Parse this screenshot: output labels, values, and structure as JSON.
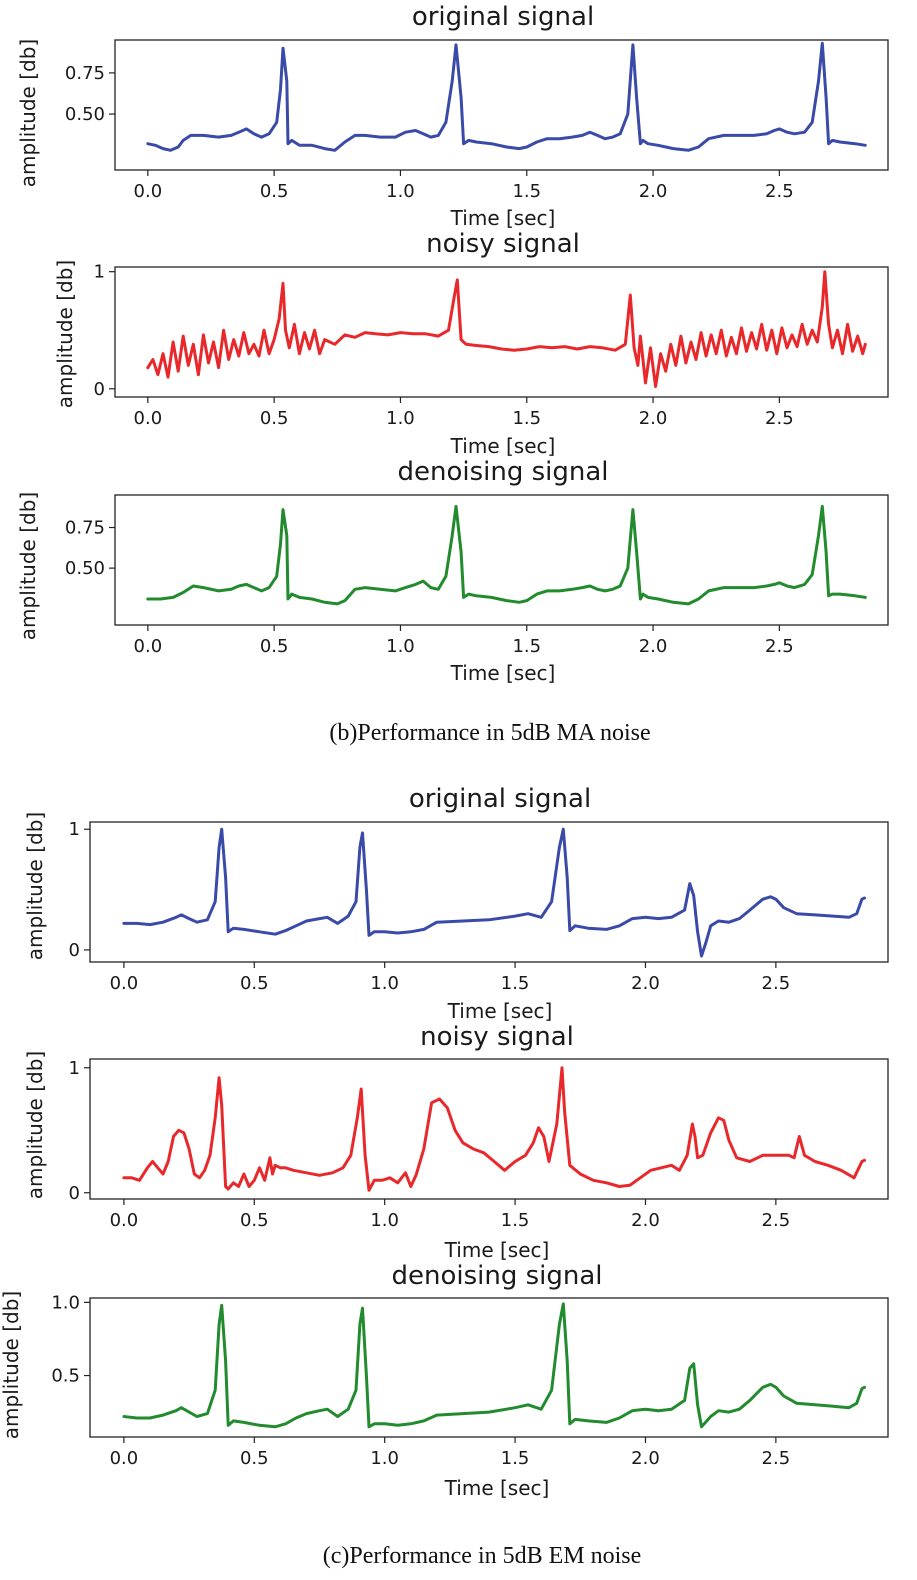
{
  "figure": {
    "captions": [
      "(b)Performance in 5dB MA noise",
      "(c)Performance in 5dB EM noise"
    ]
  },
  "chart_data": [
    {
      "type": "line",
      "group": "b",
      "title": "original signal",
      "xlabel": "Time [sec]",
      "ylabel": "amplitude [db]",
      "xlim": [
        -0.13,
        2.93
      ],
      "ylim": [
        0.16,
        0.95
      ],
      "xticks": [
        0.0,
        0.5,
        1.0,
        1.5,
        2.0,
        2.5
      ],
      "xtick_labels": [
        "0.0",
        "0.5",
        "1.0",
        "1.5",
        "2.0",
        "2.5"
      ],
      "yticks": [
        0.5,
        0.75
      ],
      "ytick_labels": [
        "0.50",
        "0.75"
      ],
      "color": "#3a4aa8",
      "x": [
        0.0,
        0.03,
        0.06,
        0.09,
        0.12,
        0.14,
        0.17,
        0.22,
        0.28,
        0.33,
        0.36,
        0.39,
        0.42,
        0.45,
        0.48,
        0.51,
        0.525,
        0.535,
        0.55,
        0.555,
        0.57,
        0.6,
        0.65,
        0.7,
        0.74,
        0.78,
        0.82,
        0.86,
        0.92,
        0.98,
        1.02,
        1.06,
        1.09,
        1.12,
        1.15,
        1.18,
        1.205,
        1.22,
        1.24,
        1.25,
        1.27,
        1.3,
        1.36,
        1.42,
        1.47,
        1.5,
        1.54,
        1.58,
        1.63,
        1.68,
        1.72,
        1.75,
        1.78,
        1.81,
        1.84,
        1.87,
        1.9,
        1.92,
        1.935,
        1.95,
        1.96,
        1.98,
        2.02,
        2.08,
        2.14,
        2.18,
        2.22,
        2.28,
        2.34,
        2.4,
        2.45,
        2.48,
        2.5,
        2.53,
        2.56,
        2.6,
        2.63,
        2.655,
        2.67,
        2.685,
        2.695,
        2.71,
        2.74,
        2.8,
        2.84
      ],
      "y": [
        0.32,
        0.31,
        0.29,
        0.28,
        0.3,
        0.34,
        0.37,
        0.37,
        0.36,
        0.37,
        0.39,
        0.41,
        0.38,
        0.36,
        0.38,
        0.45,
        0.65,
        0.9,
        0.7,
        0.32,
        0.34,
        0.31,
        0.31,
        0.29,
        0.28,
        0.33,
        0.37,
        0.37,
        0.36,
        0.36,
        0.39,
        0.4,
        0.38,
        0.36,
        0.37,
        0.45,
        0.7,
        0.92,
        0.6,
        0.32,
        0.34,
        0.33,
        0.32,
        0.3,
        0.29,
        0.3,
        0.33,
        0.35,
        0.35,
        0.36,
        0.37,
        0.39,
        0.37,
        0.35,
        0.36,
        0.38,
        0.5,
        0.92,
        0.6,
        0.32,
        0.34,
        0.32,
        0.31,
        0.29,
        0.28,
        0.3,
        0.35,
        0.37,
        0.37,
        0.37,
        0.38,
        0.4,
        0.41,
        0.39,
        0.38,
        0.39,
        0.45,
        0.7,
        0.93,
        0.6,
        0.32,
        0.34,
        0.33,
        0.32,
        0.31
      ]
    },
    {
      "type": "line",
      "group": "b",
      "title": "noisy signal",
      "xlabel": "Time [sec]",
      "ylabel": "amplitude [db]",
      "xlim": [
        -0.13,
        2.93
      ],
      "ylim": [
        -0.07,
        1.04
      ],
      "xticks": [
        0.0,
        0.5,
        1.0,
        1.5,
        2.0,
        2.5
      ],
      "xtick_labels": [
        "0.0",
        "0.5",
        "1.0",
        "1.5",
        "2.0",
        "2.5"
      ],
      "yticks": [
        0,
        1
      ],
      "ytick_labels": [
        "0",
        "1"
      ],
      "color": "#e8282a",
      "x": [
        0.0,
        0.02,
        0.04,
        0.06,
        0.08,
        0.1,
        0.12,
        0.14,
        0.16,
        0.18,
        0.2,
        0.22,
        0.24,
        0.26,
        0.28,
        0.3,
        0.32,
        0.34,
        0.36,
        0.38,
        0.4,
        0.42,
        0.44,
        0.46,
        0.48,
        0.5,
        0.52,
        0.535,
        0.545,
        0.56,
        0.58,
        0.6,
        0.62,
        0.64,
        0.66,
        0.68,
        0.7,
        0.74,
        0.78,
        0.82,
        0.86,
        0.9,
        0.95,
        1.0,
        1.05,
        1.1,
        1.15,
        1.19,
        1.21,
        1.225,
        1.24,
        1.26,
        1.3,
        1.35,
        1.4,
        1.45,
        1.5,
        1.55,
        1.6,
        1.65,
        1.7,
        1.75,
        1.8,
        1.85,
        1.89,
        1.91,
        1.925,
        1.94,
        1.95,
        1.97,
        1.99,
        2.01,
        2.03,
        2.05,
        2.07,
        2.09,
        2.11,
        2.13,
        2.15,
        2.17,
        2.19,
        2.21,
        2.23,
        2.25,
        2.27,
        2.29,
        2.31,
        2.33,
        2.35,
        2.37,
        2.39,
        2.41,
        2.43,
        2.45,
        2.47,
        2.49,
        2.51,
        2.53,
        2.55,
        2.57,
        2.59,
        2.61,
        2.63,
        2.65,
        2.67,
        2.68,
        2.695,
        2.71,
        2.73,
        2.75,
        2.77,
        2.79,
        2.81,
        2.83,
        2.84
      ],
      "y": [
        0.18,
        0.25,
        0.12,
        0.3,
        0.1,
        0.4,
        0.15,
        0.45,
        0.2,
        0.38,
        0.12,
        0.46,
        0.22,
        0.4,
        0.18,
        0.5,
        0.25,
        0.42,
        0.28,
        0.48,
        0.3,
        0.38,
        0.28,
        0.5,
        0.3,
        0.42,
        0.6,
        0.9,
        0.5,
        0.35,
        0.55,
        0.3,
        0.48,
        0.34,
        0.5,
        0.3,
        0.42,
        0.38,
        0.46,
        0.44,
        0.48,
        0.47,
        0.46,
        0.48,
        0.47,
        0.47,
        0.45,
        0.5,
        0.75,
        0.93,
        0.42,
        0.38,
        0.37,
        0.36,
        0.34,
        0.33,
        0.34,
        0.36,
        0.35,
        0.36,
        0.34,
        0.36,
        0.35,
        0.33,
        0.38,
        0.8,
        0.35,
        0.2,
        0.45,
        0.05,
        0.35,
        0.02,
        0.3,
        0.15,
        0.38,
        0.2,
        0.45,
        0.22,
        0.4,
        0.25,
        0.48,
        0.28,
        0.46,
        0.3,
        0.5,
        0.28,
        0.44,
        0.3,
        0.52,
        0.32,
        0.48,
        0.34,
        0.55,
        0.33,
        0.5,
        0.3,
        0.52,
        0.35,
        0.46,
        0.36,
        0.55,
        0.38,
        0.5,
        0.4,
        0.7,
        1.0,
        0.55,
        0.35,
        0.5,
        0.3,
        0.55,
        0.32,
        0.45,
        0.3,
        0.38
      ]
    },
    {
      "type": "line",
      "group": "b",
      "title": "denoising signal",
      "xlabel": "Time [sec]",
      "ylabel": "amplitude [db]",
      "xlim": [
        -0.13,
        2.93
      ],
      "ylim": [
        0.15,
        0.95
      ],
      "xticks": [
        0.0,
        0.5,
        1.0,
        1.5,
        2.0,
        2.5
      ],
      "xtick_labels": [
        "0.0",
        "0.5",
        "1.0",
        "1.5",
        "2.0",
        "2.5"
      ],
      "yticks": [
        0.5,
        0.75
      ],
      "ytick_labels": [
        "0.50",
        "0.75"
      ],
      "color": "#228b2d",
      "x": [
        0.0,
        0.05,
        0.1,
        0.14,
        0.18,
        0.22,
        0.28,
        0.33,
        0.36,
        0.39,
        0.42,
        0.45,
        0.48,
        0.51,
        0.525,
        0.535,
        0.55,
        0.555,
        0.57,
        0.6,
        0.65,
        0.7,
        0.75,
        0.78,
        0.82,
        0.86,
        0.92,
        0.98,
        1.02,
        1.06,
        1.09,
        1.12,
        1.15,
        1.18,
        1.205,
        1.22,
        1.24,
        1.25,
        1.27,
        1.3,
        1.36,
        1.42,
        1.47,
        1.5,
        1.54,
        1.58,
        1.63,
        1.68,
        1.72,
        1.75,
        1.78,
        1.81,
        1.84,
        1.87,
        1.9,
        1.92,
        1.935,
        1.95,
        1.96,
        1.98,
        2.02,
        2.08,
        2.14,
        2.18,
        2.22,
        2.28,
        2.34,
        2.4,
        2.45,
        2.48,
        2.5,
        2.53,
        2.56,
        2.6,
        2.63,
        2.655,
        2.67,
        2.685,
        2.695,
        2.71,
        2.74,
        2.8,
        2.84
      ],
      "y": [
        0.31,
        0.31,
        0.32,
        0.35,
        0.39,
        0.38,
        0.36,
        0.37,
        0.39,
        0.4,
        0.38,
        0.36,
        0.38,
        0.45,
        0.65,
        0.86,
        0.7,
        0.31,
        0.34,
        0.32,
        0.31,
        0.29,
        0.28,
        0.3,
        0.37,
        0.38,
        0.37,
        0.36,
        0.38,
        0.4,
        0.42,
        0.38,
        0.37,
        0.45,
        0.7,
        0.88,
        0.6,
        0.32,
        0.34,
        0.33,
        0.32,
        0.3,
        0.29,
        0.3,
        0.34,
        0.36,
        0.36,
        0.37,
        0.38,
        0.39,
        0.37,
        0.36,
        0.37,
        0.39,
        0.5,
        0.86,
        0.6,
        0.31,
        0.34,
        0.32,
        0.31,
        0.29,
        0.28,
        0.31,
        0.36,
        0.38,
        0.38,
        0.38,
        0.39,
        0.4,
        0.41,
        0.39,
        0.38,
        0.4,
        0.46,
        0.7,
        0.88,
        0.6,
        0.33,
        0.34,
        0.34,
        0.33,
        0.32
      ]
    },
    {
      "type": "line",
      "group": "c",
      "title": "original signal",
      "xlabel": "Time [sec]",
      "ylabel": "amplitude [db]",
      "xlim": [
        -0.13,
        2.93
      ],
      "ylim": [
        -0.1,
        1.06
      ],
      "xticks": [
        0.0,
        0.5,
        1.0,
        1.5,
        2.0,
        2.5
      ],
      "xtick_labels": [
        "0.0",
        "0.5",
        "1.0",
        "1.5",
        "2.0",
        "2.5"
      ],
      "yticks": [
        0,
        1
      ],
      "ytick_labels": [
        "0",
        "1"
      ],
      "color": "#3a4aa8",
      "x": [
        0.0,
        0.05,
        0.1,
        0.15,
        0.2,
        0.22,
        0.25,
        0.28,
        0.32,
        0.35,
        0.365,
        0.375,
        0.39,
        0.4,
        0.42,
        0.46,
        0.52,
        0.58,
        0.62,
        0.66,
        0.7,
        0.75,
        0.78,
        0.82,
        0.86,
        0.89,
        0.905,
        0.915,
        0.93,
        0.94,
        0.96,
        1.0,
        1.05,
        1.1,
        1.15,
        1.2,
        1.3,
        1.4,
        1.5,
        1.55,
        1.6,
        1.64,
        1.67,
        1.685,
        1.7,
        1.71,
        1.73,
        1.78,
        1.85,
        1.9,
        1.95,
        2.0,
        2.05,
        2.1,
        2.15,
        2.17,
        2.185,
        2.2,
        2.215,
        2.23,
        2.25,
        2.28,
        2.32,
        2.36,
        2.4,
        2.45,
        2.48,
        2.5,
        2.53,
        2.58,
        2.65,
        2.72,
        2.78,
        2.81,
        2.83,
        2.84
      ],
      "y": [
        0.22,
        0.22,
        0.21,
        0.23,
        0.27,
        0.29,
        0.26,
        0.23,
        0.25,
        0.4,
        0.85,
        1.0,
        0.6,
        0.15,
        0.18,
        0.17,
        0.15,
        0.13,
        0.16,
        0.2,
        0.24,
        0.26,
        0.27,
        0.22,
        0.28,
        0.4,
        0.85,
        0.97,
        0.5,
        0.12,
        0.15,
        0.15,
        0.14,
        0.15,
        0.17,
        0.23,
        0.24,
        0.25,
        0.28,
        0.3,
        0.27,
        0.4,
        0.85,
        1.0,
        0.6,
        0.16,
        0.2,
        0.18,
        0.17,
        0.2,
        0.26,
        0.27,
        0.26,
        0.27,
        0.33,
        0.55,
        0.45,
        0.15,
        -0.05,
        0.05,
        0.2,
        0.24,
        0.23,
        0.26,
        0.33,
        0.42,
        0.44,
        0.42,
        0.35,
        0.3,
        0.29,
        0.28,
        0.27,
        0.3,
        0.42,
        0.43
      ]
    },
    {
      "type": "line",
      "group": "c",
      "title": "noisy signal",
      "xlabel": "Time [sec]",
      "ylabel": "amplitude [db]",
      "xlim": [
        -0.13,
        2.93
      ],
      "ylim": [
        -0.05,
        1.07
      ],
      "xticks": [
        0.0,
        0.5,
        1.0,
        1.5,
        2.0,
        2.5
      ],
      "xtick_labels": [
        "0.0",
        "0.5",
        "1.0",
        "1.5",
        "2.0",
        "2.5"
      ],
      "yticks": [
        0,
        1
      ],
      "ytick_labels": [
        "0",
        "1"
      ],
      "color": "#e8282a",
      "x": [
        0.0,
        0.03,
        0.06,
        0.09,
        0.11,
        0.13,
        0.15,
        0.17,
        0.19,
        0.21,
        0.23,
        0.25,
        0.27,
        0.29,
        0.31,
        0.33,
        0.35,
        0.365,
        0.375,
        0.39,
        0.4,
        0.42,
        0.44,
        0.46,
        0.48,
        0.5,
        0.52,
        0.54,
        0.56,
        0.57,
        0.58,
        0.6,
        0.62,
        0.65,
        0.7,
        0.75,
        0.8,
        0.84,
        0.87,
        0.895,
        0.91,
        0.925,
        0.94,
        0.96,
        0.99,
        1.02,
        1.05,
        1.08,
        1.1,
        1.12,
        1.15,
        1.18,
        1.21,
        1.24,
        1.27,
        1.3,
        1.34,
        1.38,
        1.42,
        1.46,
        1.5,
        1.54,
        1.57,
        1.59,
        1.61,
        1.63,
        1.66,
        1.68,
        1.69,
        1.71,
        1.75,
        1.8,
        1.85,
        1.9,
        1.94,
        1.98,
        2.02,
        2.06,
        2.1,
        2.13,
        2.16,
        2.18,
        2.19,
        2.2,
        2.22,
        2.25,
        2.28,
        2.3,
        2.32,
        2.35,
        2.4,
        2.45,
        2.5,
        2.55,
        2.57,
        2.59,
        2.61,
        2.65,
        2.7,
        2.75,
        2.8,
        2.83,
        2.84
      ],
      "y": [
        0.12,
        0.12,
        0.1,
        0.2,
        0.25,
        0.2,
        0.15,
        0.25,
        0.45,
        0.5,
        0.48,
        0.35,
        0.15,
        0.12,
        0.18,
        0.3,
        0.6,
        0.92,
        0.7,
        0.05,
        0.03,
        0.08,
        0.05,
        0.15,
        0.05,
        0.1,
        0.2,
        0.1,
        0.28,
        0.15,
        0.22,
        0.2,
        0.2,
        0.18,
        0.16,
        0.14,
        0.16,
        0.2,
        0.3,
        0.6,
        0.83,
        0.3,
        0.02,
        0.1,
        0.1,
        0.12,
        0.08,
        0.16,
        0.05,
        0.14,
        0.35,
        0.72,
        0.75,
        0.68,
        0.5,
        0.4,
        0.35,
        0.32,
        0.25,
        0.18,
        0.25,
        0.3,
        0.4,
        0.52,
        0.45,
        0.25,
        0.55,
        1.0,
        0.65,
        0.22,
        0.15,
        0.1,
        0.08,
        0.05,
        0.06,
        0.12,
        0.18,
        0.2,
        0.22,
        0.18,
        0.3,
        0.55,
        0.45,
        0.28,
        0.3,
        0.48,
        0.6,
        0.58,
        0.42,
        0.28,
        0.25,
        0.3,
        0.3,
        0.3,
        0.28,
        0.45,
        0.3,
        0.25,
        0.22,
        0.18,
        0.12,
        0.25,
        0.26
      ]
    },
    {
      "type": "line",
      "group": "c",
      "title": "denoising signal",
      "xlabel": "Time [sec]",
      "ylabel": "amplitude [db]",
      "xlim": [
        -0.13,
        2.93
      ],
      "ylim": [
        0.08,
        1.03
      ],
      "xticks": [
        0.0,
        0.5,
        1.0,
        1.5,
        2.0,
        2.5
      ],
      "xtick_labels": [
        "0.0",
        "0.5",
        "1.0",
        "1.5",
        "2.0",
        "2.5"
      ],
      "yticks": [
        0.5,
        1.0
      ],
      "ytick_labels": [
        "0.5",
        "1.0"
      ],
      "color": "#228b2d",
      "x": [
        0.0,
        0.05,
        0.1,
        0.15,
        0.2,
        0.22,
        0.25,
        0.28,
        0.32,
        0.35,
        0.365,
        0.375,
        0.39,
        0.4,
        0.42,
        0.46,
        0.52,
        0.58,
        0.62,
        0.66,
        0.7,
        0.75,
        0.78,
        0.82,
        0.86,
        0.89,
        0.905,
        0.915,
        0.93,
        0.94,
        0.96,
        1.0,
        1.05,
        1.1,
        1.15,
        1.2,
        1.3,
        1.4,
        1.5,
        1.55,
        1.6,
        1.64,
        1.67,
        1.685,
        1.7,
        1.71,
        1.73,
        1.78,
        1.85,
        1.9,
        1.95,
        2.0,
        2.05,
        2.1,
        2.15,
        2.17,
        2.185,
        2.2,
        2.215,
        2.23,
        2.25,
        2.28,
        2.32,
        2.36,
        2.4,
        2.45,
        2.48,
        2.5,
        2.53,
        2.58,
        2.65,
        2.72,
        2.78,
        2.81,
        2.83,
        2.84
      ],
      "y": [
        0.22,
        0.21,
        0.21,
        0.23,
        0.26,
        0.28,
        0.25,
        0.22,
        0.24,
        0.4,
        0.85,
        0.98,
        0.6,
        0.16,
        0.19,
        0.18,
        0.16,
        0.15,
        0.17,
        0.21,
        0.24,
        0.26,
        0.27,
        0.22,
        0.27,
        0.4,
        0.85,
        0.96,
        0.5,
        0.15,
        0.17,
        0.17,
        0.16,
        0.17,
        0.19,
        0.23,
        0.24,
        0.25,
        0.28,
        0.3,
        0.27,
        0.4,
        0.85,
        0.99,
        0.6,
        0.17,
        0.2,
        0.19,
        0.18,
        0.21,
        0.26,
        0.27,
        0.26,
        0.27,
        0.33,
        0.55,
        0.58,
        0.3,
        0.15,
        0.18,
        0.22,
        0.26,
        0.25,
        0.27,
        0.33,
        0.42,
        0.44,
        0.42,
        0.36,
        0.31,
        0.3,
        0.29,
        0.28,
        0.31,
        0.41,
        0.42
      ]
    }
  ]
}
